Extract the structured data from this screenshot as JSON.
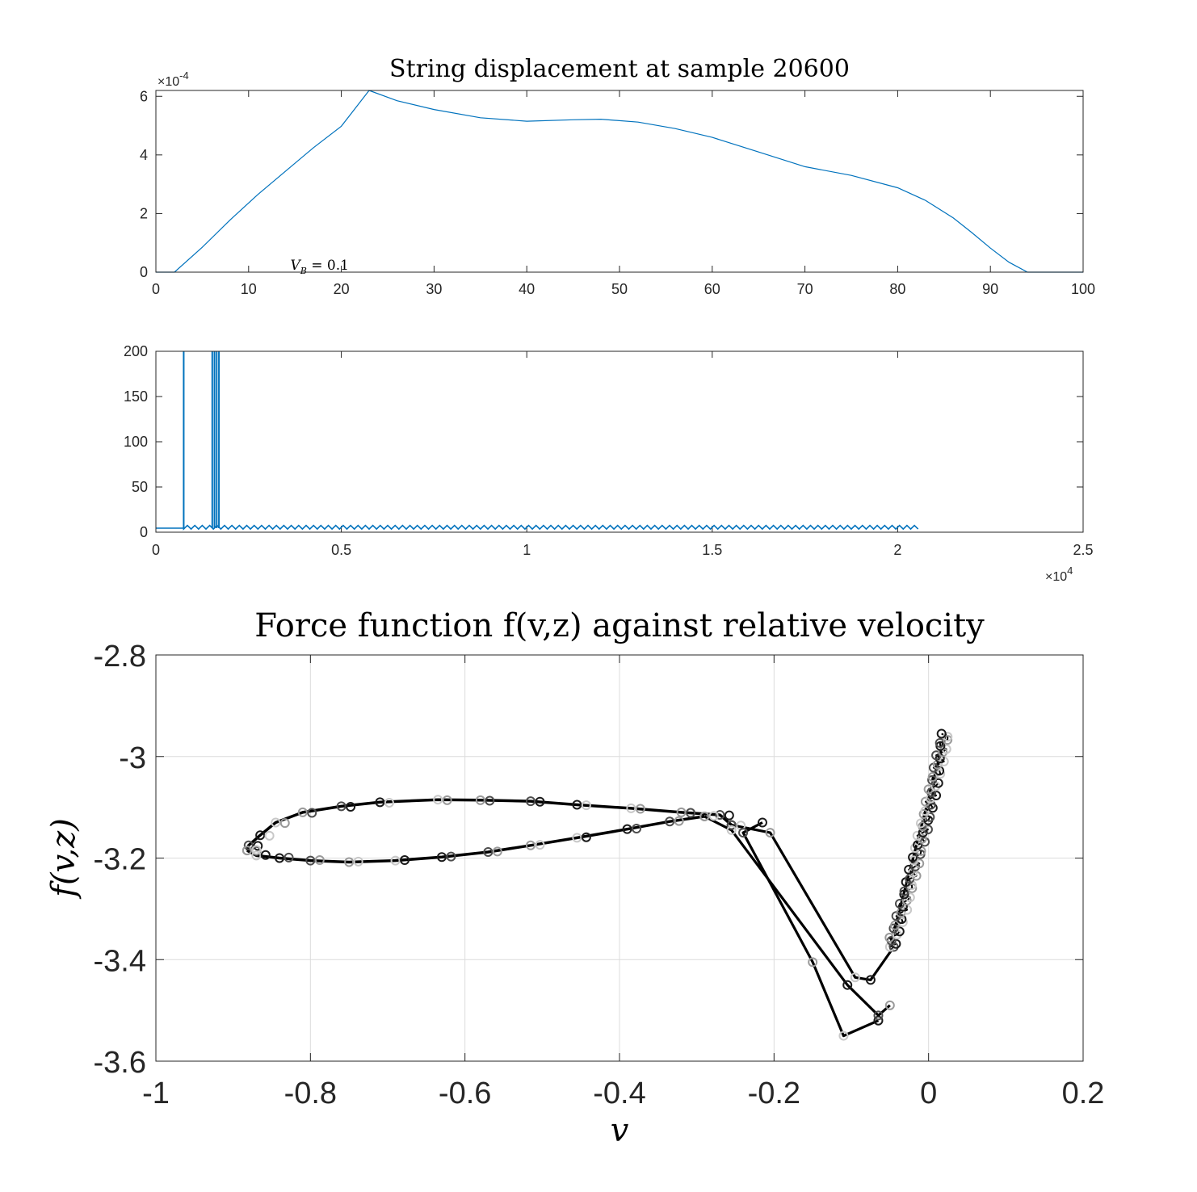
{
  "chart_data": [
    {
      "type": "line",
      "title": "String displacement at sample 20600",
      "xlabel": "",
      "ylabel": "",
      "xlim": [
        0,
        100
      ],
      "ylim": [
        0,
        6.2
      ],
      "y_exponent_label": "×10",
      "y_exponent": "-4",
      "xticks": [
        "0",
        "10",
        "20",
        "30",
        "40",
        "50",
        "60",
        "70",
        "80",
        "90",
        "100"
      ],
      "yticks": [
        "0",
        "2",
        "4",
        "6"
      ],
      "annotation": {
        "text": "V",
        "sub": "B",
        "rest": " = 0.1",
        "x": 14.5,
        "y": 0.05
      },
      "grid": false,
      "color": "#0072BD",
      "series": [
        {
          "x": [
            0,
            2,
            5,
            8,
            11,
            14,
            17,
            20,
            23,
            26,
            30,
            35,
            40,
            45,
            48,
            52,
            56,
            60,
            65,
            70,
            75,
            80,
            83,
            86,
            88,
            90,
            92,
            94,
            95,
            100
          ],
          "y": [
            0,
            0,
            0.85,
            1.78,
            2.65,
            3.45,
            4.25,
            4.98,
            6.2,
            5.85,
            5.55,
            5.27,
            5.15,
            5.2,
            5.22,
            5.12,
            4.9,
            4.6,
            4.1,
            3.6,
            3.3,
            2.88,
            2.45,
            1.85,
            1.35,
            0.82,
            0.34,
            0,
            0,
            0
          ]
        }
      ]
    },
    {
      "type": "line",
      "title": "",
      "xlabel": "",
      "ylabel": "",
      "xlim": [
        0,
        25000
      ],
      "ylim": [
        0,
        200
      ],
      "x_exponent_label": "×10",
      "x_exponent": "4",
      "xticks": [
        "0",
        "0.5",
        "1",
        "1.5",
        "2",
        "2.5"
      ],
      "yticks": [
        "0",
        "50",
        "100",
        "150",
        "200"
      ],
      "grid": false,
      "color": "#0072BD",
      "baseline_level": 4.5,
      "baseline_ripple": 3,
      "spikes_x": [
        750,
        1520,
        1580,
        1640,
        1700
      ],
      "end_x": 20600
    },
    {
      "type": "scatter",
      "title": "Force function f(v,z) against relative velocity",
      "xlabel": "v",
      "ylabel": "f(v,z)",
      "xlim": [
        -1,
        0.2
      ],
      "ylim": [
        -3.6,
        -2.8
      ],
      "xticks": [
        "-1",
        "-0.8",
        "-0.6",
        "-0.4",
        "-0.2",
        "0",
        "0.2"
      ],
      "yticks": [
        "-2.8",
        "-3",
        "-3.2",
        "-3.4",
        "-3.6"
      ],
      "grid": true,
      "line_color": "#000000",
      "marker": "circle-open",
      "marker_colors": [
        "#1a1a1a",
        "#4d4d4d",
        "#9a9a9a",
        "#c8c8c8"
      ],
      "loop_upper": {
        "x": [
          -0.255,
          -0.27,
          -0.32,
          -0.385,
          -0.455,
          -0.515,
          -0.58,
          -0.635,
          -0.71,
          -0.76,
          -0.81,
          -0.845,
          -0.865,
          -0.88,
          -0.882
        ],
        "y": [
          -3.135,
          -3.115,
          -3.11,
          -3.102,
          -3.095,
          -3.088,
          -3.086,
          -3.085,
          -3.09,
          -3.098,
          -3.11,
          -3.13,
          -3.155,
          -3.175,
          -3.185
        ]
      },
      "loop_lower": {
        "x": [
          -0.882,
          -0.87,
          -0.84,
          -0.8,
          -0.75,
          -0.69,
          -0.63,
          -0.57,
          -0.515,
          -0.455,
          -0.39,
          -0.335,
          -0.29
        ],
        "y": [
          -3.185,
          -3.195,
          -3.2,
          -3.205,
          -3.208,
          -3.205,
          -3.198,
          -3.188,
          -3.175,
          -3.16,
          -3.143,
          -3.128,
          -3.118
        ]
      },
      "drop_paths": [
        {
          "x": [
            -0.215,
            -0.24,
            -0.15,
            -0.11,
            -0.065
          ],
          "y": [
            -3.13,
            -3.15,
            -3.405,
            -3.55,
            -3.52
          ]
        },
        {
          "x": [
            -0.255,
            -0.205,
            -0.095,
            -0.075,
            -0.045
          ],
          "y": [
            -3.135,
            -3.15,
            -3.435,
            -3.44,
            -3.375
          ]
        },
        {
          "x": [
            -0.29,
            -0.255,
            -0.105,
            -0.065,
            -0.05
          ],
          "y": [
            -3.118,
            -3.145,
            -3.45,
            -3.51,
            -3.49
          ]
        }
      ],
      "rise_branch": {
        "x_start": -0.05,
        "y_start": -3.375,
        "x_end": 0.022,
        "y_end": -2.955,
        "points": 70
      }
    }
  ]
}
